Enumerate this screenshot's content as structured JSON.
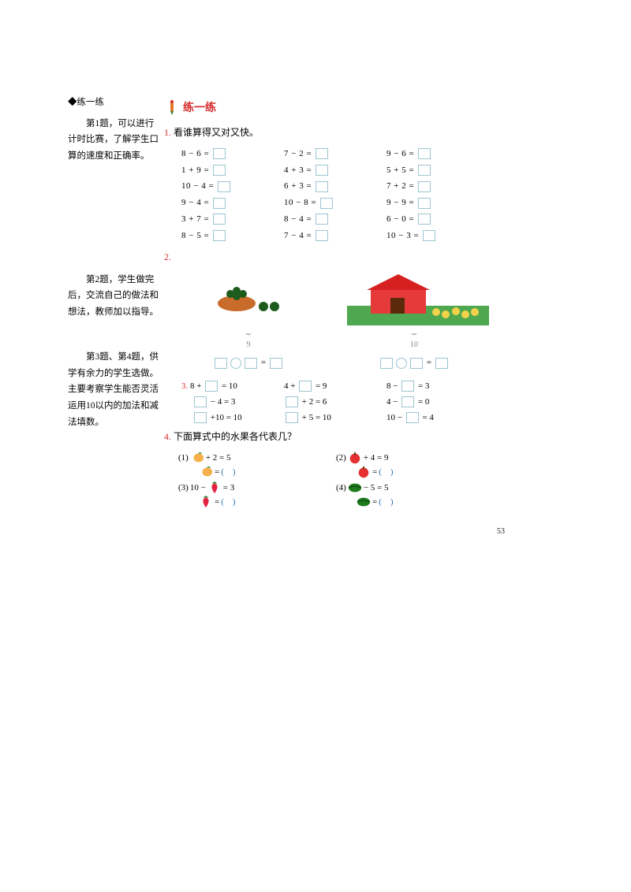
{
  "left": {
    "heading": "◆练一练",
    "p1": "第1题，可以进行计时比赛，了解学生口算的速度和正确率。",
    "p2": "第2题，学生做完后，交流自己的做法和想法，教师加以指导。",
    "p3": "第3题、第4题，供学有余力的学生选做。主要考察学生能否灵活运用10以内的加法和减法填数。"
  },
  "header": "练一练",
  "q1": {
    "num": "1.",
    "title": "看谁算得又对又快。",
    "rows": [
      [
        "8 − 6 =",
        "7 − 2 =",
        "9 − 6 ="
      ],
      [
        "1 + 9 =",
        "4 + 3 =",
        "5 + 5 ="
      ],
      [
        "10 − 4 =",
        "6 + 3 =",
        "7 + 2 ="
      ],
      [
        "9 − 4 =",
        "10 − 8 =",
        "9 − 9 ="
      ],
      [
        "3 + 7 =",
        "8 − 4 =",
        "6 − 0 ="
      ],
      [
        "8 − 5 =",
        "7 − 4 =",
        "10 − 3 ="
      ]
    ]
  },
  "q2": {
    "num": "2.",
    "items": [
      {
        "total": "9"
      },
      {
        "total": "10"
      }
    ]
  },
  "q3": {
    "num": "3.",
    "rows": [
      [
        {
          "pre": "8 + ",
          "post": " = 10"
        },
        {
          "pre": "4 + ",
          "post": " = 9"
        },
        {
          "pre": "8 − ",
          "post": " = 3"
        }
      ],
      [
        {
          "pre": "",
          "post": " − 4 = 3"
        },
        {
          "pre": "",
          "post": " + 2 = 6"
        },
        {
          "pre": "4 − ",
          "post": " = 0"
        }
      ],
      [
        {
          "pre": "",
          "post": " +10 = 10"
        },
        {
          "pre": "",
          "post": " + 5 = 10"
        },
        {
          "pre": "10 − ",
          "post": " = 4"
        }
      ]
    ]
  },
  "q4": {
    "num": "4.",
    "title": "下面算式中的水果各代表几？",
    "items": [
      {
        "idx": "(1)",
        "fruit": "peach",
        "line1": " + 2 = 5",
        "line2": " = (　)"
      },
      {
        "idx": "(2)",
        "fruit": "apple",
        "line1": " + 4 = 9",
        "line2": " = (　)"
      },
      {
        "idx": "(3)",
        "fruit": "strawberry",
        "line1_pre": "10 − ",
        "line1_post": " = 3",
        "line2": " = (　)"
      },
      {
        "idx": "(4)",
        "fruit": "melon",
        "line1": " − 5 = 5",
        "line2": " = (　)"
      }
    ]
  },
  "page": "53",
  "colors": {
    "red": "#d62e2e",
    "boxBorder": "#9cc5d0",
    "blue": "#2a6fb5"
  }
}
